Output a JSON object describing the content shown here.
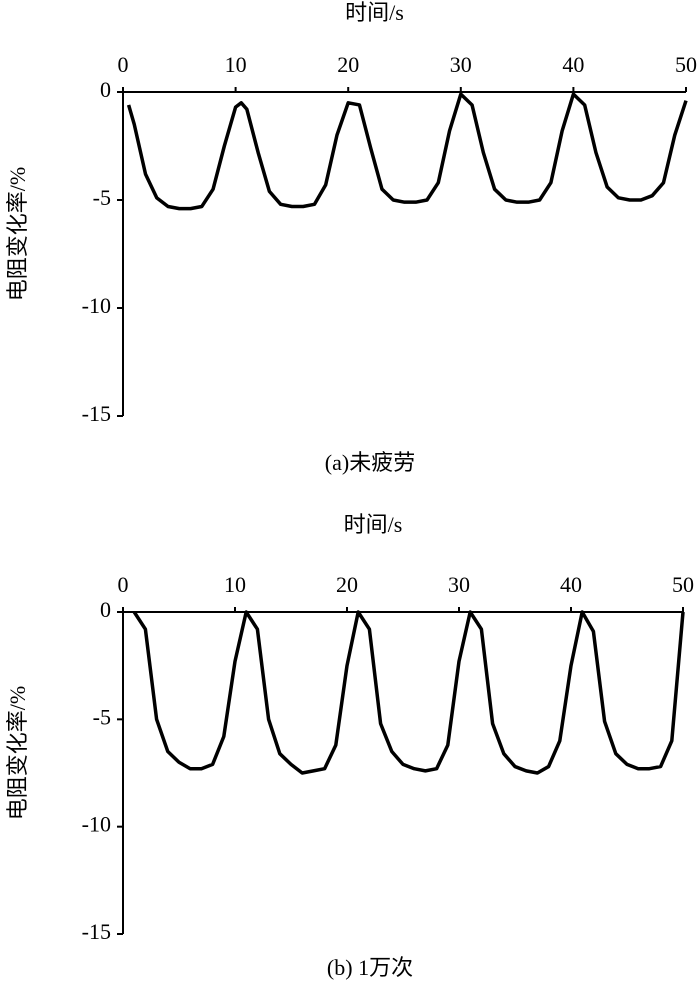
{
  "chart_data": [
    {
      "type": "line",
      "x_label": "时间/s",
      "y_label": "电阻变化率/%",
      "caption": "(a)未疲劳",
      "x_axis_position": "top",
      "color": "#000000",
      "x": [
        0.5,
        1,
        2,
        3,
        4,
        5,
        6,
        7,
        8,
        9,
        10,
        10.5,
        11,
        12,
        13,
        14,
        15,
        16,
        17,
        18,
        19,
        20,
        21,
        22,
        23,
        24,
        25,
        26,
        27,
        28,
        29,
        30,
        31,
        32,
        33,
        34,
        35,
        36,
        37,
        38,
        39,
        40,
        41,
        42,
        43,
        44,
        45,
        46,
        47,
        48,
        49,
        50
      ],
      "values": [
        -0.6,
        -1.5,
        -3.8,
        -4.9,
        -5.3,
        -5.4,
        -5.4,
        -5.3,
        -4.5,
        -2.5,
        -0.7,
        -0.5,
        -0.8,
        -2.8,
        -4.6,
        -5.2,
        -5.3,
        -5.3,
        -5.2,
        -4.3,
        -2.0,
        -0.5,
        -0.6,
        -2.6,
        -4.5,
        -5.0,
        -5.1,
        -5.1,
        -5.0,
        -4.2,
        -1.8,
        -0.1,
        -0.6,
        -2.8,
        -4.5,
        -5.0,
        -5.1,
        -5.1,
        -5.0,
        -4.2,
        -1.8,
        -0.1,
        -0.6,
        -2.8,
        -4.4,
        -4.9,
        -5.0,
        -5.0,
        -4.8,
        -4.2,
        -2.0,
        -0.4
      ],
      "xlim": [
        0,
        50
      ],
      "xticks": [
        0,
        10,
        20,
        30,
        40,
        50
      ],
      "ylim": [
        -15,
        0
      ],
      "yticks": [
        -15,
        -10,
        -5,
        0
      ]
    },
    {
      "type": "line",
      "x_label": "时间/s",
      "y_label": "电阻变化率/%",
      "caption": "(b) 1万次",
      "x_axis_position": "top",
      "color": "#000000",
      "x": [
        1,
        2,
        3,
        4,
        5,
        6,
        7,
        8,
        9,
        10,
        11,
        12,
        13,
        14,
        15,
        16,
        17,
        18,
        19,
        20,
        21,
        22,
        23,
        24,
        25,
        26,
        27,
        28,
        29,
        30,
        31,
        32,
        33,
        34,
        35,
        36,
        37,
        38,
        39,
        40,
        41,
        42,
        43,
        44,
        45,
        46,
        47,
        48,
        49,
        50
      ],
      "values": [
        0,
        -0.8,
        -5,
        -6.5,
        -7.0,
        -7.3,
        -7.3,
        -7.1,
        -5.8,
        -2.3,
        0,
        -0.8,
        -5,
        -6.6,
        -7.1,
        -7.5,
        -7.4,
        -7.3,
        -6.2,
        -2.5,
        0,
        -0.8,
        -5.2,
        -6.5,
        -7.1,
        -7.3,
        -7.4,
        -7.3,
        -6.2,
        -2.3,
        0,
        -0.8,
        -5.2,
        -6.6,
        -7.2,
        -7.4,
        -7.5,
        -7.2,
        -6.0,
        -2.5,
        0,
        -0.9,
        -5.1,
        -6.6,
        -7.1,
        -7.3,
        -7.3,
        -7.2,
        -6.0,
        0
      ],
      "xlim": [
        0,
        50
      ],
      "xticks": [
        0,
        10,
        20,
        30,
        40,
        50
      ],
      "ylim": [
        -15,
        0
      ],
      "yticks": [
        -15,
        -10,
        -5,
        0
      ]
    }
  ]
}
